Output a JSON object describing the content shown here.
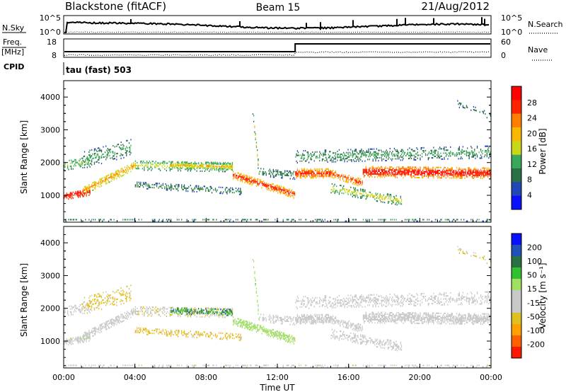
{
  "header": {
    "station": "Blackstone (fitACF)",
    "beam": "Beam 15",
    "date": "21/Aug/2012"
  },
  "noise_panel": {
    "left_label": "N.Sky",
    "right_label": "N.Search",
    "left_ticks": [
      "10^5",
      "10^0"
    ],
    "right_ticks": [
      "10^5",
      "10^0"
    ]
  },
  "freq_panel": {
    "left_label_top": "Freq.",
    "left_label_unit": "[MHz]",
    "right_label": "Nave",
    "left_ticks": [
      "18",
      "8"
    ],
    "right_ticks": [
      "60",
      "0"
    ]
  },
  "cpid": {
    "label": "CPID",
    "program": "tau (fast) 503"
  },
  "power_panel": {
    "ylabel": "Slant Range [km]",
    "yticks": [
      "1000",
      "2000",
      "3000",
      "4000"
    ],
    "colorbar_label": "Power [dB]",
    "colorbar_ticks": [
      "4",
      "8",
      "12",
      "16",
      "20",
      "24",
      "28"
    ],
    "colors": [
      "#0a10ff",
      "#2146b8",
      "#2a7046",
      "#3aa85a",
      "#c8d818",
      "#f8b800",
      "#ff8000",
      "#ff2400",
      "#ff0000"
    ]
  },
  "velocity_panel": {
    "ylabel": "Slant Range [km]",
    "yticks": [
      "1000",
      "2000",
      "3000",
      "4000"
    ],
    "colorbar_label": "Velocity [m s⁻¹]",
    "colorbar_ticks": [
      "200",
      "100",
      "50",
      "15",
      "-15",
      "-50",
      "-100",
      "-200"
    ],
    "colors": [
      "#0a10ff",
      "#2150b8",
      "#2a7040",
      "#30c030",
      "#a0e060",
      "#c8c8c8",
      "#c8c8c8",
      "#e0c020",
      "#ffa000",
      "#ff6000",
      "#ff1800"
    ]
  },
  "x_axis": {
    "ticks": [
      "00:00",
      "04:00",
      "08:00",
      "12:00",
      "16:00",
      "20:00",
      "00:00"
    ],
    "label": "Time UT"
  },
  "chart_data": {
    "type": "heatmap",
    "title": "Blackstone (fitACF)",
    "x_range_hours": [
      0,
      24
    ],
    "y_range_km": [
      180,
      4500
    ],
    "power_scale_db": [
      0,
      32
    ],
    "velocity_scale_ms": [
      -250,
      250
    ],
    "nave": {
      "before_hour": 13,
      "value_before": 18,
      "value_after": 60
    },
    "echo_bands": [
      {
        "t0": 0.0,
        "t1": 1.5,
        "r_start": 950,
        "r_end": 1100,
        "half_width": 110,
        "density": 0.9,
        "power": [
          24,
          30
        ],
        "velocity": [
          -20,
          30
        ]
      },
      {
        "t0": 1.0,
        "t1": 4.0,
        "r_start": 1100,
        "r_end": 1900,
        "half_width": 130,
        "density": 0.8,
        "power": [
          12,
          24
        ],
        "velocity": [
          -20,
          20
        ]
      },
      {
        "t0": 0.0,
        "t1": 1.5,
        "r_start": 1900,
        "r_end": 2000,
        "half_width": 150,
        "density": 0.45,
        "power": [
          8,
          16
        ],
        "velocity": [
          -40,
          20
        ]
      },
      {
        "t0": 1.0,
        "t1": 3.8,
        "r_start": 2050,
        "r_end": 2450,
        "half_width": 260,
        "density": 0.35,
        "power": [
          4,
          14
        ],
        "velocity": [
          -110,
          -60
        ]
      },
      {
        "t0": 4.0,
        "t1": 9.5,
        "r_start": 1900,
        "r_end": 1850,
        "half_width": 150,
        "density": 0.55,
        "power": [
          8,
          18
        ],
        "velocity": [
          -90,
          -30
        ]
      },
      {
        "t0": 6.0,
        "t1": 9.5,
        "r_start": 1900,
        "r_end": 1850,
        "half_width": 90,
        "density": 0.6,
        "power": [
          10,
          22
        ],
        "velocity": [
          60,
          180
        ]
      },
      {
        "t0": 4.0,
        "t1": 10.0,
        "r_start": 1300,
        "r_end": 1100,
        "half_width": 100,
        "density": 0.5,
        "power": [
          4,
          12
        ],
        "velocity": [
          -120,
          -60
        ]
      },
      {
        "t0": 9.5,
        "t1": 13.0,
        "r_start": 1600,
        "r_end": 1000,
        "half_width": 120,
        "density": 0.85,
        "power": [
          16,
          30
        ],
        "velocity": [
          20,
          60
        ]
      },
      {
        "t0": 10.6,
        "t1": 11.0,
        "r_start": 3600,
        "r_end": 1400,
        "half_width": 140,
        "density": 0.55,
        "power": [
          4,
          20
        ],
        "velocity": [
          20,
          80
        ]
      },
      {
        "t0": 11.0,
        "t1": 13.0,
        "r_start": 1700,
        "r_end": 1600,
        "half_width": 130,
        "density": 0.5,
        "power": [
          4,
          12
        ],
        "velocity": [
          -10,
          10
        ]
      },
      {
        "t0": 13.0,
        "t1": 15.0,
        "r_start": 1650,
        "r_end": 1650,
        "half_width": 140,
        "density": 0.9,
        "power": [
          16,
          30
        ],
        "velocity": [
          -10,
          10
        ]
      },
      {
        "t0": 15.0,
        "t1": 16.8,
        "r_start": 1650,
        "r_end": 1350,
        "half_width": 120,
        "density": 0.85,
        "power": [
          16,
          28
        ],
        "velocity": [
          -10,
          10
        ]
      },
      {
        "t0": 16.8,
        "t1": 24.0,
        "r_start": 1700,
        "r_end": 1650,
        "half_width": 160,
        "density": 0.9,
        "power": [
          18,
          32
        ],
        "velocity": [
          -10,
          10
        ]
      },
      {
        "t0": 13.0,
        "t1": 24.0,
        "r_start": 2150,
        "r_end": 2300,
        "half_width": 180,
        "density": 0.45,
        "power": [
          4,
          14
        ],
        "velocity": [
          -10,
          10
        ]
      },
      {
        "t0": 15.0,
        "t1": 19.0,
        "r_start": 1200,
        "r_end": 800,
        "half_width": 140,
        "density": 0.5,
        "power": [
          6,
          20
        ],
        "velocity": [
          -10,
          10
        ]
      },
      {
        "t0": 22.0,
        "t1": 24.0,
        "r_start": 3800,
        "r_end": 3400,
        "half_width": 100,
        "density": 0.25,
        "power": [
          4,
          10
        ],
        "velocity": [
          -120,
          -20
        ]
      },
      {
        "t0": 0.0,
        "t1": 24.0,
        "r_start": 230,
        "r_end": 230,
        "half_width": 40,
        "density": 0.35,
        "power": [
          4,
          12
        ],
        "velocity": [
          -30,
          30
        ]
      }
    ]
  }
}
